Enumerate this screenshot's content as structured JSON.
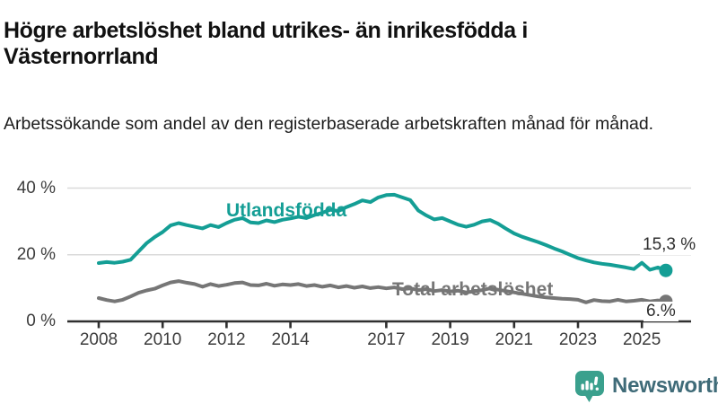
{
  "header": {
    "title": "Högre arbetslöshet bland utrikes- än inrikesfödda i Västernorrland",
    "subtitle": "Arbetssökande som andel av den registerbaserade arbetskraften månad för månad."
  },
  "chart_data": {
    "type": "line",
    "title": "Högre arbetslöshet bland utrikes- än inrikesfödda i Västernorrland",
    "subtitle": "Arbetssökande som andel av den registerbaserade arbetskraften månad för månad.",
    "x_unit": "year",
    "x0": 2008,
    "dx": 0.25,
    "x_axis": {
      "ticks": [
        "2008",
        "2010",
        "2012",
        "2014",
        "2017",
        "2019",
        "2021",
        "2023",
        "2025"
      ]
    },
    "y_axis": {
      "ticks": [
        {
          "value": 40,
          "label": "40 %"
        },
        {
          "value": 20,
          "label": "20 %"
        },
        {
          "value": 0,
          "label": "0 %"
        }
      ],
      "lim": [
        0,
        40
      ],
      "grid": true
    },
    "legend_position": "inline-labels",
    "series": [
      {
        "name": "Utlandsfödda",
        "color": "#149e95",
        "end_label": "15,3 %",
        "end_value": 15.3,
        "values": [
          17.5,
          17.8,
          17.6,
          17.9,
          18.5,
          21.0,
          23.5,
          25.3,
          26.8,
          28.8,
          29.5,
          28.9,
          28.4,
          27.9,
          28.9,
          28.3,
          29.5,
          30.5,
          31.0,
          29.7,
          29.5,
          30.3,
          29.8,
          30.5,
          30.9,
          31.4,
          31.0,
          31.9,
          32.6,
          33.5,
          33.1,
          34.3,
          35.2,
          36.3,
          35.8,
          37.2,
          37.9,
          38.0,
          37.2,
          36.4,
          33.3,
          31.8,
          30.6,
          31.0,
          30.0,
          29.0,
          28.4,
          29.0,
          30.0,
          30.4,
          29.3,
          27.8,
          26.4,
          25.4,
          24.6,
          23.8,
          22.9,
          21.9,
          21.0,
          20.0,
          19.0,
          18.3,
          17.7,
          17.3,
          17.0,
          16.6,
          16.2,
          15.7,
          17.6,
          15.5,
          16.2,
          15.3
        ]
      },
      {
        "name": "Total arbetslöshet",
        "color": "#767676",
        "end_label": "6.%",
        "end_value": 6.0,
        "values": [
          7.0,
          6.4,
          6.0,
          6.5,
          7.5,
          8.6,
          9.3,
          9.8,
          10.8,
          11.7,
          12.1,
          11.6,
          11.2,
          10.4,
          11.2,
          10.6,
          11.0,
          11.5,
          11.7,
          10.9,
          10.8,
          11.3,
          10.7,
          11.1,
          10.9,
          11.2,
          10.6,
          10.9,
          10.4,
          10.8,
          10.2,
          10.6,
          10.1,
          10.5,
          10.0,
          10.3,
          9.9,
          10.2,
          9.7,
          9.9,
          9.4,
          9.7,
          9.1,
          9.4,
          9.0,
          9.2,
          8.7,
          9.0,
          9.4,
          9.9,
          9.5,
          9.1,
          8.7,
          8.3,
          7.9,
          7.5,
          7.2,
          7.0,
          6.8,
          6.7,
          6.5,
          5.7,
          6.4,
          6.1,
          6.0,
          6.5,
          6.0,
          6.2,
          6.5,
          6.0,
          6.3,
          6.0
        ]
      }
    ],
    "colors": {
      "grid": "#dadada",
      "axis": "#2f2f2f",
      "tick_text": "#3c3c3c"
    }
  },
  "footer": {
    "brand": "Newsworthy",
    "logo_icon": "newsworthy-chart-bubble-icon",
    "brand_teal": "#3aa08d",
    "brand_text_color": "#3f6b78"
  }
}
